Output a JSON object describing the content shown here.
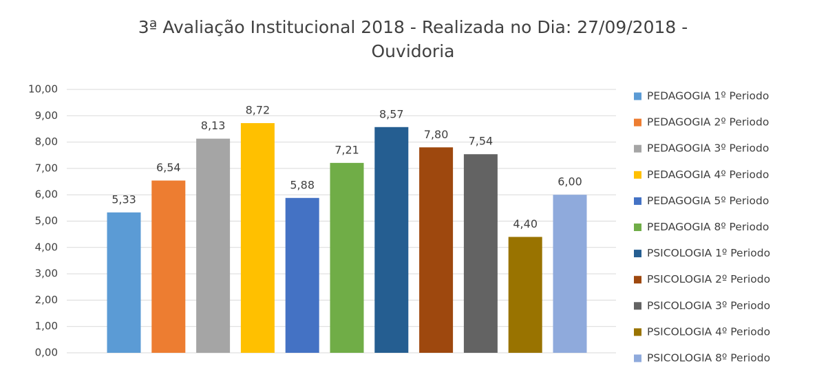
{
  "chart_data": {
    "type": "bar",
    "title": "3ª Avaliação Institucional 2018 - Realizada no Dia: 27/09/2018 - Ouvidoria",
    "categories": [
      null
    ],
    "series": [
      {
        "name": "PEDAGOGIA 1º Periodo",
        "color": "#5b9bd5",
        "values": [
          5.33
        ],
        "value_labels": [
          "5,33"
        ]
      },
      {
        "name": "PEDAGOGIA 2º Periodo",
        "color": "#ed7d31",
        "values": [
          6.54
        ],
        "value_labels": [
          "6,54"
        ]
      },
      {
        "name": "PEDAGOGIA 3º Periodo",
        "color": "#a5a5a5",
        "values": [
          8.13
        ],
        "value_labels": [
          "8,13"
        ]
      },
      {
        "name": "PEDAGOGIA 4º Periodo",
        "color": "#ffc000",
        "values": [
          8.72
        ],
        "value_labels": [
          "8,72"
        ]
      },
      {
        "name": "PEDAGOGIA 5º Periodo",
        "color": "#4472c4",
        "values": [
          5.88
        ],
        "value_labels": [
          "5,88"
        ]
      },
      {
        "name": "PEDAGOGIA 8º Periodo",
        "color": "#70ad47",
        "values": [
          7.21
        ],
        "value_labels": [
          "7,21"
        ]
      },
      {
        "name": "PSICOLOGIA 1º Periodo",
        "color": "#255e91",
        "values": [
          8.57
        ],
        "value_labels": [
          "8,57"
        ]
      },
      {
        "name": "PSICOLOGIA 2º Periodo",
        "color": "#9e480e",
        "values": [
          7.8
        ],
        "value_labels": [
          "7,80"
        ]
      },
      {
        "name": "PSICOLOGIA 3º Periodo",
        "color": "#636363",
        "values": [
          7.54
        ],
        "value_labels": [
          "7,54"
        ]
      },
      {
        "name": "PSICOLOGIA 4º Periodo",
        "color": "#997300",
        "values": [
          4.4
        ],
        "value_labels": [
          "4,40"
        ]
      },
      {
        "name": "PSICOLOGIA 8º Periodo",
        "color": "#8faadc",
        "values": [
          6.0
        ],
        "value_labels": [
          "6,00"
        ]
      }
    ],
    "ylim": [
      0,
      10
    ],
    "yticks": [
      {
        "value": 0,
        "label": "0,00"
      },
      {
        "value": 1,
        "label": "1,00"
      },
      {
        "value": 2,
        "label": "2,00"
      },
      {
        "value": 3,
        "label": "3,00"
      },
      {
        "value": 4,
        "label": "4,00"
      },
      {
        "value": 5,
        "label": "5,00"
      },
      {
        "value": 6,
        "label": "6,00"
      },
      {
        "value": 7,
        "label": "7,00"
      },
      {
        "value": 8,
        "label": "8,00"
      },
      {
        "value": 9,
        "label": "9,00"
      },
      {
        "value": 10,
        "label": "10,00"
      }
    ],
    "grid": true,
    "legend": "right"
  }
}
